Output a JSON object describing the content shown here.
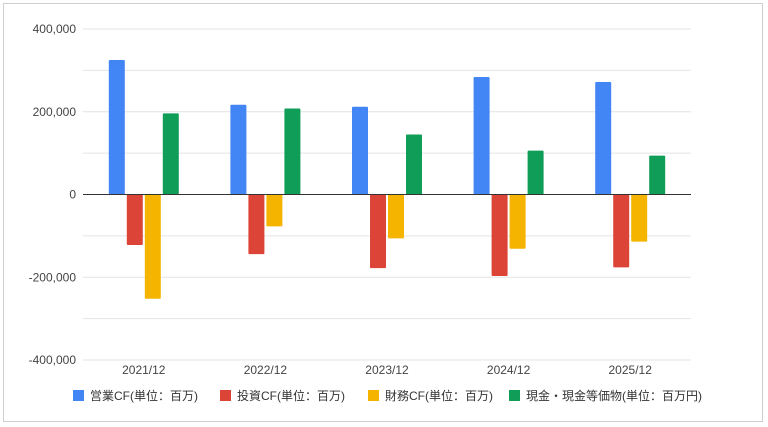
{
  "chart_data": {
    "type": "bar",
    "categories": [
      "2021/12",
      "2022/12",
      "2023/12",
      "2024/12",
      "2025/12"
    ],
    "series": [
      {
        "name": "営業CF(単位：百万)",
        "color": "#4285f4",
        "values": [
          325000,
          217000,
          212000,
          284000,
          272000
        ]
      },
      {
        "name": "投資CF(単位：百万)",
        "color": "#db4437",
        "values": [
          -122000,
          -144000,
          -178000,
          -197000,
          -176000
        ]
      },
      {
        "name": "財務CF(単位：百万)",
        "color": "#f4b400",
        "values": [
          -252000,
          -77000,
          -106000,
          -131000,
          -114000
        ]
      },
      {
        "name": "現金・現金等価物(単位：百万円)",
        "color": "#0f9d58",
        "values": [
          196000,
          208000,
          145000,
          106000,
          94000
        ]
      }
    ],
    "yticks": [
      {
        "value": 400000,
        "label": "400,000"
      },
      {
        "value": 200000,
        "label": "200,000"
      },
      {
        "value": 0,
        "label": "0"
      },
      {
        "value": -200000,
        "label": "-200,000"
      },
      {
        "value": -400000,
        "label": "-400,000"
      }
    ],
    "ylim": [
      -400000,
      400000
    ],
    "grid": true,
    "legend_position": "bottom"
  }
}
